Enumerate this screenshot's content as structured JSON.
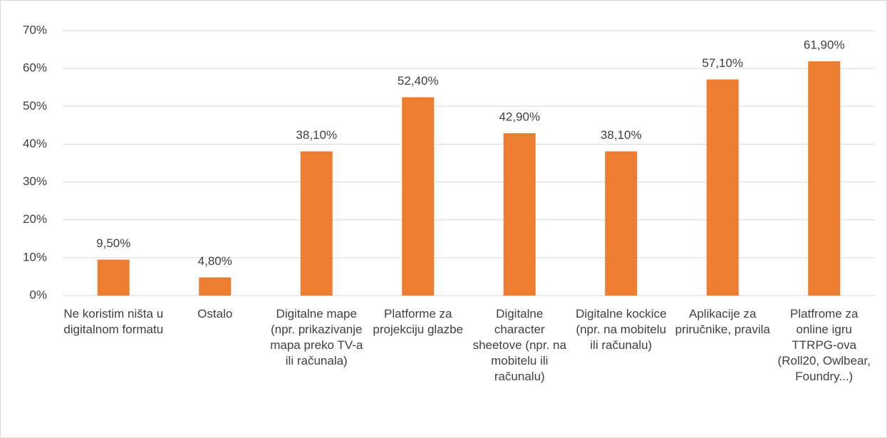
{
  "chart_data": {
    "type": "bar",
    "categories": [
      "Ne koristim ništa u digitalnom formatu",
      "Ostalo",
      "Digitalne mape (npr. prikazivanje mapa preko TV-a ili računala)",
      "Platforme za projekciju glazbe",
      "Digitalne character sheetove (npr. na mobitelu ili računalu)",
      "Digitalne kockice (npr. na mobitelu ili računalu)",
      "Aplikacije za priručnike, pravila",
      "Platfrome za online igru TTRPG-ova (Roll20, Owlbear, Foundry...)"
    ],
    "values": [
      9.5,
      4.8,
      38.1,
      52.4,
      42.9,
      38.1,
      57.1,
      61.9
    ],
    "value_labels": [
      "9,50%",
      "4,80%",
      "38,10%",
      "52,40%",
      "42,90%",
      "38,10%",
      "57,10%",
      "61,90%"
    ],
    "color": "#ed7d31",
    "ylim": [
      0,
      70
    ],
    "yticks": [
      {
        "value": 0,
        "label": "0%"
      },
      {
        "value": 10,
        "label": "10%"
      },
      {
        "value": 20,
        "label": "20%"
      },
      {
        "value": 30,
        "label": "30%"
      },
      {
        "value": 40,
        "label": "40%"
      },
      {
        "value": 50,
        "label": "50%"
      },
      {
        "value": 60,
        "label": "60%"
      },
      {
        "value": 70,
        "label": "70%"
      }
    ],
    "grid": true
  }
}
